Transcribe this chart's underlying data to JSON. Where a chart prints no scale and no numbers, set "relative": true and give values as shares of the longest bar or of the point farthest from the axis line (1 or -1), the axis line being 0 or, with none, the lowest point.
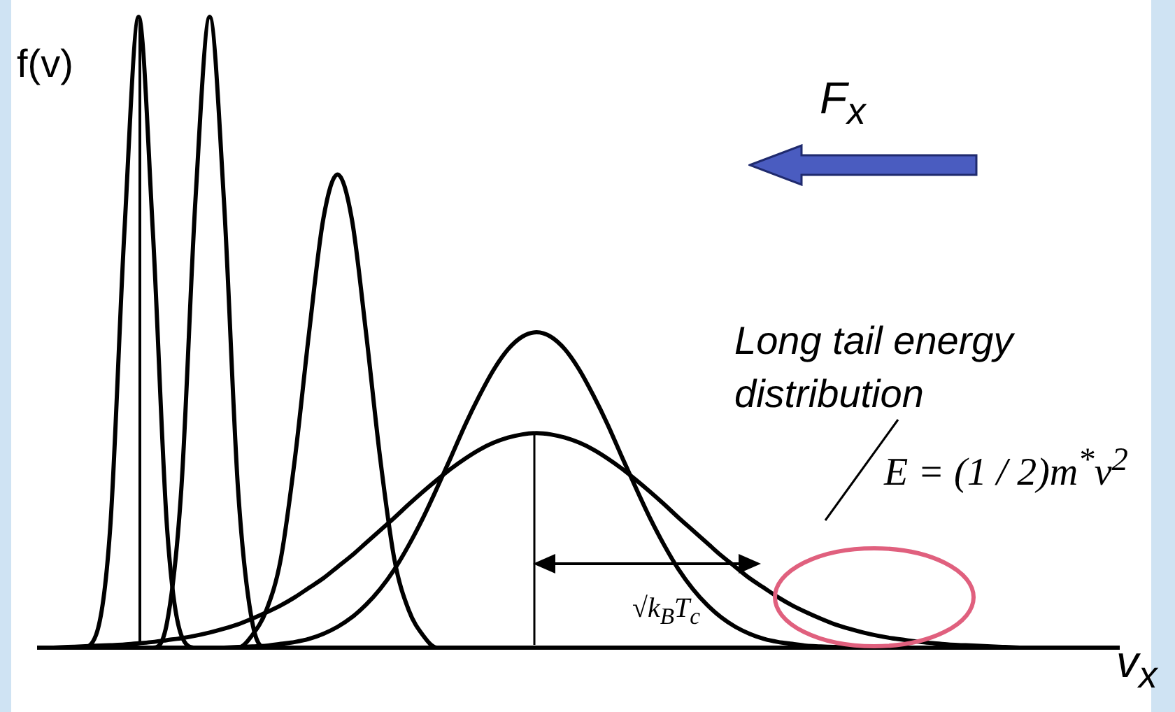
{
  "chart_data": {
    "type": "line",
    "relative": true,
    "xlabel": "v$_{x}$",
    "ylabel": "f(v)",
    "legend": false,
    "grid": false,
    "marker": "none",
    "line_style": "solid",
    "categories": [
      null,
      null,
      null,
      null,
      null,
      null,
      null,
      null,
      null,
      null,
      null,
      null,
      null,
      null,
      null,
      null,
      null,
      null,
      null,
      null,
      null,
      null,
      null,
      null,
      null,
      null,
      null,
      null,
      null,
      null,
      null,
      null,
      null,
      null,
      null,
      null,
      null,
      null,
      null,
      null,
      null,
      null,
      null,
      null,
      null,
      null,
      null,
      null,
      null,
      null,
      null,
      null,
      null,
      null,
      null,
      null,
      null,
      null,
      null,
      null,
      null,
      null,
      null,
      null,
      null,
      null,
      null,
      null,
      null,
      null,
      null,
      null,
      null,
      null,
      null,
      null,
      null
    ],
    "series": [
      {
        "color": "#000000",
        "values": [
          0,
          0,
          0,
          0,
          0.02,
          0.19,
          0.66,
          1,
          0.66,
          0.19,
          0.02,
          0,
          0,
          0,
          0,
          0,
          0,
          0,
          0,
          0,
          0,
          0,
          0,
          0,
          0,
          0,
          0,
          0,
          0,
          0,
          0,
          0,
          0,
          0,
          0,
          0,
          0,
          0,
          0,
          0,
          0,
          0,
          0,
          0,
          0,
          0,
          0,
          0,
          0,
          0,
          0,
          0,
          0,
          0,
          0,
          0,
          0,
          0,
          0,
          0,
          0,
          0,
          0,
          0,
          0,
          0,
          0,
          0,
          0,
          0,
          0,
          0,
          0,
          0,
          0,
          0,
          0
        ]
      },
      {
        "color": "#000000",
        "values": [
          0,
          0,
          0,
          0,
          0,
          0,
          0,
          0,
          0,
          0.04,
          0.25,
          0.71,
          1,
          0.71,
          0.25,
          0.04,
          0,
          0,
          0,
          0,
          0,
          0,
          0,
          0,
          0,
          0,
          0,
          0,
          0,
          0,
          0,
          0,
          0,
          0,
          0,
          0,
          0,
          0,
          0,
          0,
          0,
          0,
          0,
          0,
          0,
          0,
          0,
          0,
          0,
          0,
          0,
          0,
          0,
          0,
          0,
          0,
          0,
          0,
          0,
          0,
          0,
          0,
          0,
          0,
          0,
          0,
          0,
          0,
          0,
          0,
          0,
          0,
          0,
          0,
          0,
          0,
          0
        ]
      },
      {
        "color": "#000000",
        "values": [
          0,
          0,
          0,
          0,
          0,
          0,
          0,
          0,
          0,
          0,
          0,
          0,
          0,
          0,
          0,
          0.02,
          0.06,
          0.14,
          0.3,
          0.5,
          0.68,
          0.75,
          0.68,
          0.5,
          0.3,
          0.14,
          0.06,
          0.02,
          0,
          0,
          0,
          0,
          0,
          0,
          0,
          0,
          0,
          0,
          0,
          0,
          0,
          0,
          0,
          0,
          0,
          0,
          0,
          0,
          0,
          0,
          0,
          0,
          0,
          0,
          0,
          0,
          0,
          0,
          0,
          0,
          0,
          0,
          0,
          0,
          0,
          0,
          0,
          0,
          0,
          0,
          0,
          0,
          0,
          0,
          0,
          0,
          0
        ]
      },
      {
        "color": "#000000",
        "values": [
          null,
          null,
          null,
          null,
          null,
          null,
          null,
          null,
          null,
          null,
          null,
          null,
          null,
          0,
          0.001,
          0.002,
          0.003,
          0.006,
          0.009,
          0.014,
          0.022,
          0.033,
          0.048,
          0.068,
          0.093,
          0.124,
          0.162,
          0.205,
          0.253,
          0.303,
          0.354,
          0.4,
          0.441,
          0.473,
          0.493,
          0.5,
          0.493,
          0.473,
          0.441,
          0.4,
          0.354,
          0.303,
          0.253,
          0.205,
          0.162,
          0.124,
          0.093,
          0.068,
          0.048,
          0.033,
          0.022,
          0.014,
          0.009,
          0.006,
          0.003,
          0.002,
          0.001,
          0,
          null,
          null,
          null,
          null,
          null,
          null,
          null,
          null,
          null,
          null,
          null,
          null,
          null,
          null,
          null,
          null,
          null,
          null,
          null
        ]
      },
      {
        "color": "#000000",
        "values": [
          null,
          0,
          0.001,
          0.002,
          0.003,
          0.004,
          0.005,
          0.007,
          0.009,
          0.012,
          0.015,
          0.019,
          0.024,
          0.03,
          0.037,
          0.046,
          0.056,
          0.067,
          0.08,
          0.095,
          0.11,
          0.128,
          0.146,
          0.166,
          0.186,
          0.206,
          0.227,
          0.247,
          0.266,
          0.284,
          0.3,
          0.314,
          0.325,
          0.333,
          0.338,
          0.34,
          0.338,
          0.333,
          0.325,
          0.314,
          0.3,
          0.284,
          0.266,
          0.247,
          0.227,
          0.206,
          0.186,
          0.166,
          0.146,
          0.128,
          0.11,
          0.095,
          0.08,
          0.067,
          0.056,
          0.046,
          0.037,
          0.03,
          0.024,
          0.019,
          0.015,
          0.012,
          0.009,
          0.007,
          0.005,
          0.004,
          0.003,
          0.002,
          0.001,
          0,
          null,
          null,
          null,
          null,
          null,
          null,
          null
        ]
      }
    ],
    "annotations": [
      "F$_{x}$",
      "Long tail energy distribution",
      "E = (1 / 2)m$^{*}$v$^{2}$",
      "√k$_{B}$T$_{c}$"
    ]
  }
}
